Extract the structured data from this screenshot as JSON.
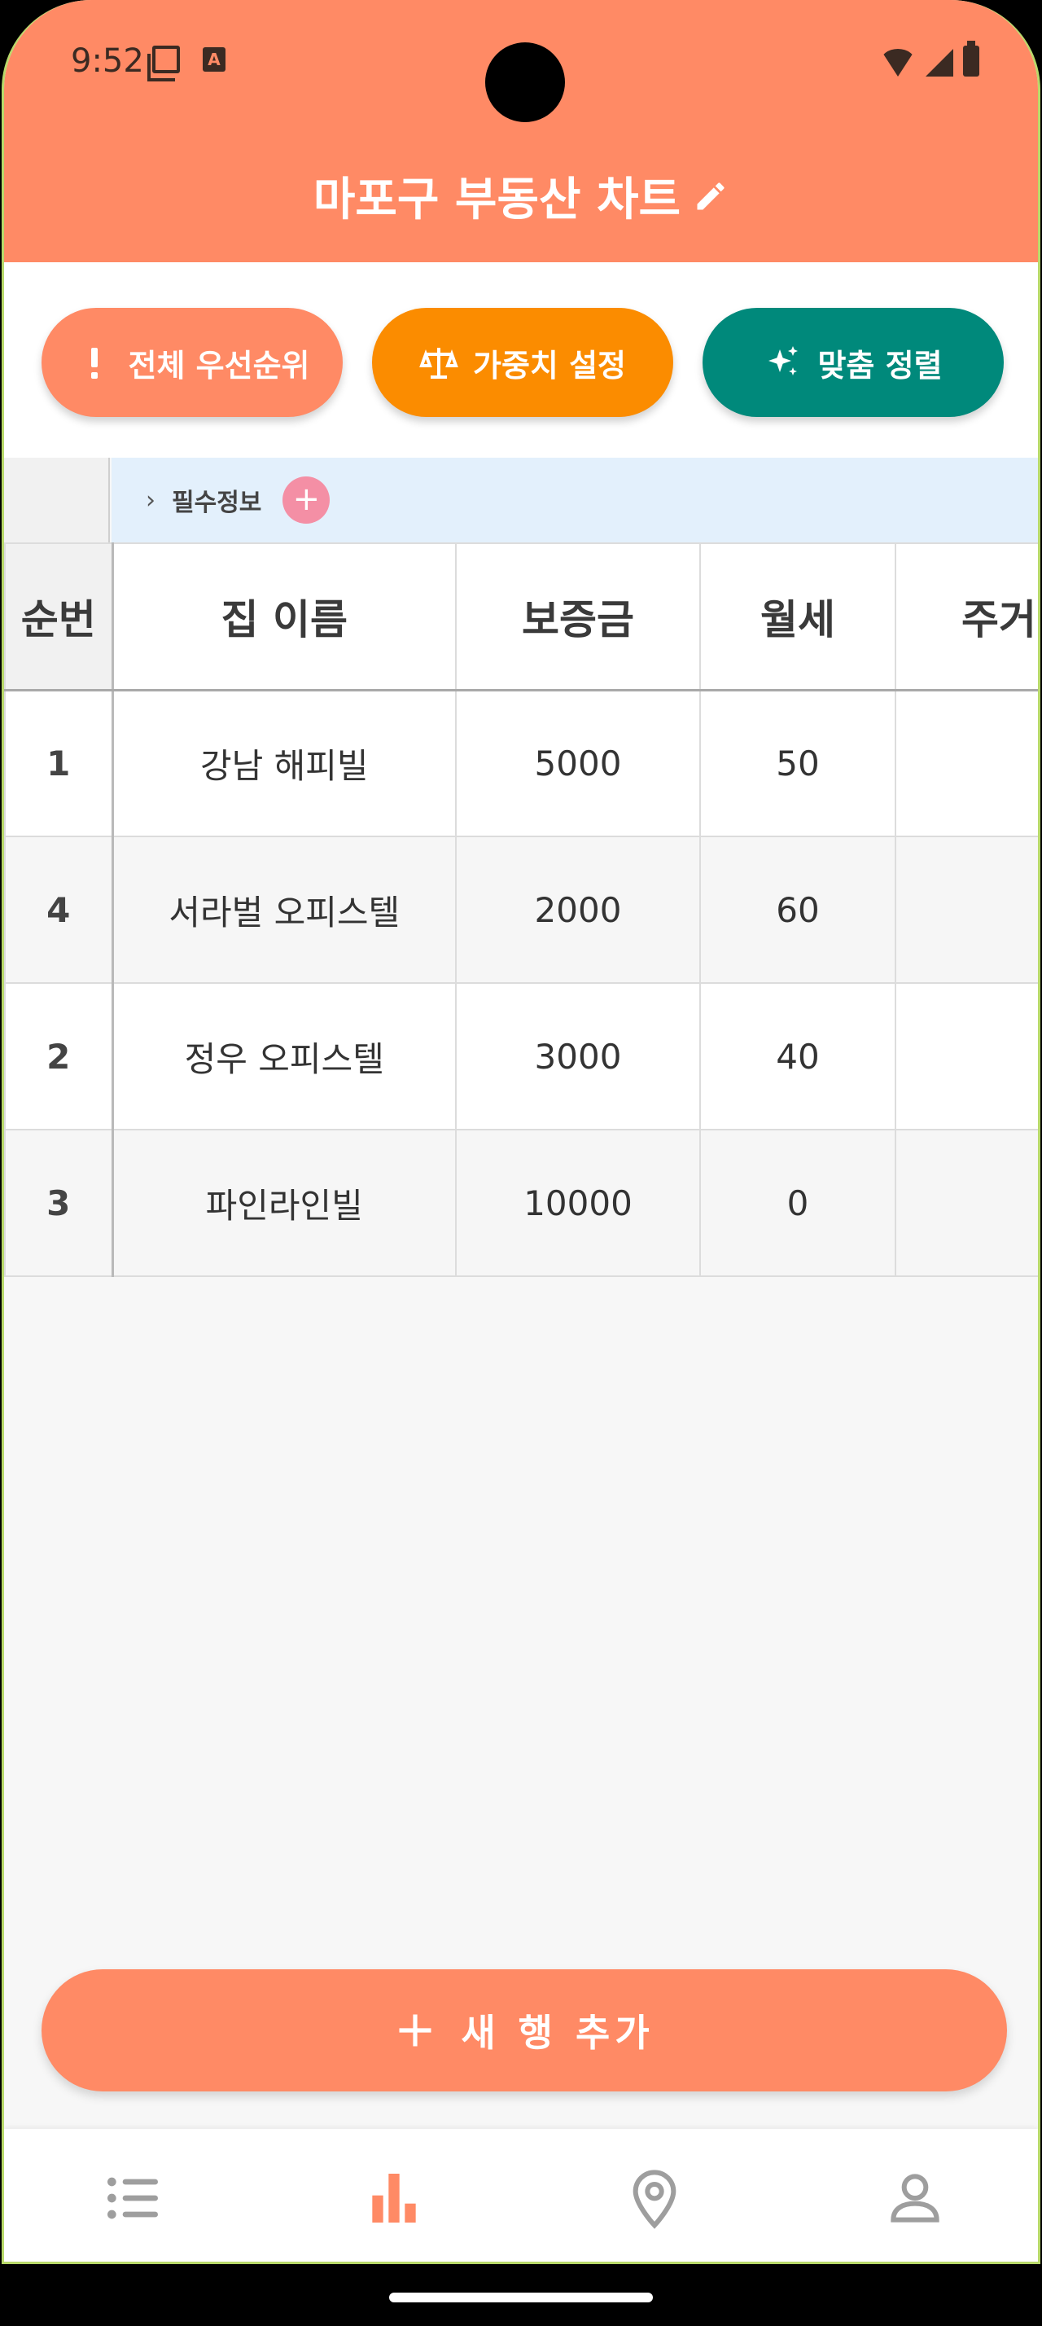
{
  "status_bar": {
    "time": "9:52"
  },
  "header": {
    "title": "마포구 부동산 차트"
  },
  "actions": {
    "priority_label": "전체 우선순위",
    "weight_label": "가중치 설정",
    "sort_label": "맞춤 정렬"
  },
  "group": {
    "label": "필수정보",
    "add_symbol": "+",
    "chevron": "›"
  },
  "table": {
    "columns": [
      "순번",
      "집 이름",
      "보증금",
      "월세",
      "주거"
    ],
    "rows": [
      {
        "index": "1",
        "name": "강남 해피빌",
        "deposit": "5000",
        "rent": "50"
      },
      {
        "index": "4",
        "name": "서라벌 오피스텔",
        "deposit": "2000",
        "rent": "60"
      },
      {
        "index": "2",
        "name": "정우 오피스텔",
        "deposit": "3000",
        "rent": "40"
      },
      {
        "index": "3",
        "name": "파인라인빌",
        "deposit": "10000",
        "rent": "0"
      }
    ]
  },
  "add_row": {
    "label": "새 행 추가"
  },
  "colors": {
    "primary": "#ff8a65",
    "weight": "#fb8c00",
    "sort": "#00897b",
    "group_bar": "#e3f0fc",
    "nav_active": "#ff8a65",
    "nav_inactive": "#9e9e9e"
  },
  "bottom_nav": {
    "items": [
      {
        "icon": "list-icon",
        "active": false
      },
      {
        "icon": "bar-chart-icon",
        "active": true
      },
      {
        "icon": "map-pin-icon",
        "active": false
      },
      {
        "icon": "person-icon",
        "active": false
      }
    ]
  }
}
